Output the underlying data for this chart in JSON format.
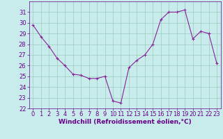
{
  "x": [
    0,
    1,
    2,
    3,
    4,
    5,
    6,
    7,
    8,
    9,
    10,
    11,
    12,
    13,
    14,
    15,
    16,
    17,
    18,
    19,
    20,
    21,
    22,
    23
  ],
  "y": [
    29.8,
    28.7,
    27.8,
    26.7,
    26.0,
    25.2,
    25.1,
    24.8,
    24.8,
    25.0,
    22.7,
    22.5,
    25.8,
    26.5,
    27.0,
    28.0,
    30.3,
    31.0,
    31.0,
    31.2,
    28.5,
    29.2,
    29.0,
    26.2
  ],
  "line_color": "#882299",
  "marker": "+",
  "bg_color": "#c8ecec",
  "grid_color": "#99ccbb",
  "xlabel": "Windchill (Refroidissement éolien,°C)",
  "ylim": [
    22,
    32
  ],
  "xlim_min": -0.5,
  "xlim_max": 23.5,
  "yticks": [
    22,
    23,
    24,
    25,
    26,
    27,
    28,
    29,
    30,
    31
  ],
  "xticks": [
    0,
    1,
    2,
    3,
    4,
    5,
    6,
    7,
    8,
    9,
    10,
    11,
    12,
    13,
    14,
    15,
    16,
    17,
    18,
    19,
    20,
    21,
    22,
    23
  ],
  "axis_color": "#660088",
  "tick_color": "#660088",
  "xlabel_fontsize": 6.5,
  "tick_fontsize": 6.0,
  "linewidth": 0.8,
  "markersize": 3.0
}
